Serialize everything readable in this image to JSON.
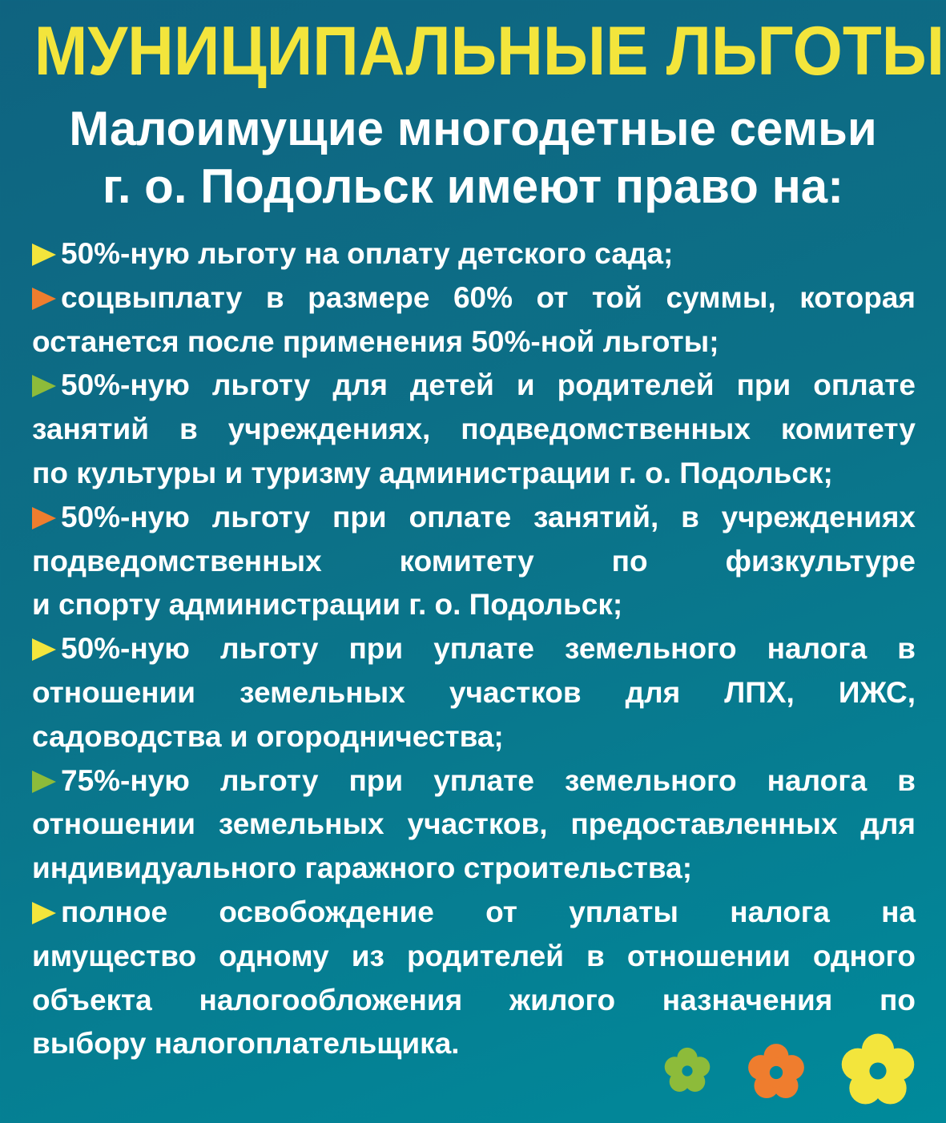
{
  "title": "МУНИЦИПАЛЬНЫЕ ЛЬГОТЫ",
  "subtitle": [
    "Малоимущие многодетные семьи",
    "г. о. Подольск имеют право на:"
  ],
  "colors": {
    "title": "#f3e53c",
    "yellow": "#f3e53c",
    "orange": "#ef7d2e",
    "green": "#8dbb3a",
    "background": "#0c7188"
  },
  "items": [
    {
      "bullet": "yellow",
      "lines": [
        "50%-ную льготу на оплату детского сада;"
      ]
    },
    {
      "bullet": "orange",
      "lines": [
        "соцвыплату в размере 60% от той суммы, которая",
        "останется после применения 50%-ной льготы;"
      ]
    },
    {
      "bullet": "green",
      "lines": [
        "50%-ную льготу для детей и родителей при оплате",
        "занятий в учреждениях, подведомственных комитету",
        "по культуры и туризму администрации г. о. Подольск;"
      ]
    },
    {
      "bullet": "orange",
      "lines": [
        "50%-ную льготу при оплате занятий, в учреждениях",
        "подведомственных комитету по физкультуре",
        "и спорту администрации г. о. Подольск;"
      ]
    },
    {
      "bullet": "yellow",
      "lines": [
        "50%-ную льготу при уплате земельного налога в",
        "отношении земельных участков для ЛПХ, ИЖС,",
        "садоводства и огородничества;"
      ]
    },
    {
      "bullet": "green",
      "lines": [
        "75%-ную льготу при уплате земельного налога в",
        "отношении земельных участков, предоставленных для",
        "индивидуального гаражного строительства;"
      ]
    },
    {
      "bullet": "yellow",
      "lines": [
        "полное освобождение от уплаты налога на",
        "имущество одному из родителей в отношении одного",
        "объекта налогообложения жилого назначения по",
        "выбору налогоплательщика."
      ]
    }
  ],
  "decorations": [
    "flower-icon green",
    "flower-icon orange",
    "flower-icon yellow"
  ]
}
